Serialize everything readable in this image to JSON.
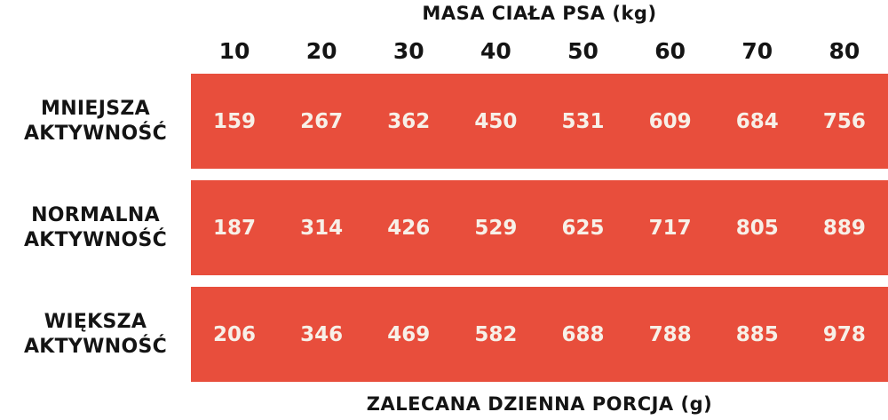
{
  "colors": {
    "bar_background": "#E84E3C",
    "bar_value_text": "#F7F0E8",
    "label_text": "#141414",
    "page_background": "#FFFFFF"
  },
  "header": {
    "title": "MASA CIAŁA PSA (kg)"
  },
  "footer": {
    "caption": "ZALECANA DZIENNA PORCJA (g)"
  },
  "chart_data": {
    "type": "table",
    "title": "MASA CIAŁA PSA (kg)",
    "caption": "ZALECANA DZIENNA PORCJA (g)",
    "columns": [
      "10",
      "20",
      "30",
      "40",
      "50",
      "60",
      "70",
      "80"
    ],
    "rows": [
      {
        "label": "MNIEJSZA AKTYWNOŚĆ",
        "label_line1": "MNIEJSZA",
        "label_line2": "AKTYWNOŚĆ",
        "values": [
          159,
          267,
          362,
          450,
          531,
          609,
          684,
          756
        ]
      },
      {
        "label": "NORMALNA AKTYWNOŚĆ",
        "label_line1": "NORMALNA",
        "label_line2": "AKTYWNOŚĆ",
        "values": [
          187,
          314,
          426,
          529,
          625,
          717,
          805,
          889
        ]
      },
      {
        "label": "WIĘKSZA AKTYWNOŚĆ",
        "label_line1": "WIĘKSZA",
        "label_line2": "AKTYWNOŚĆ",
        "values": [
          206,
          346,
          469,
          582,
          688,
          788,
          885,
          978
        ]
      }
    ]
  }
}
